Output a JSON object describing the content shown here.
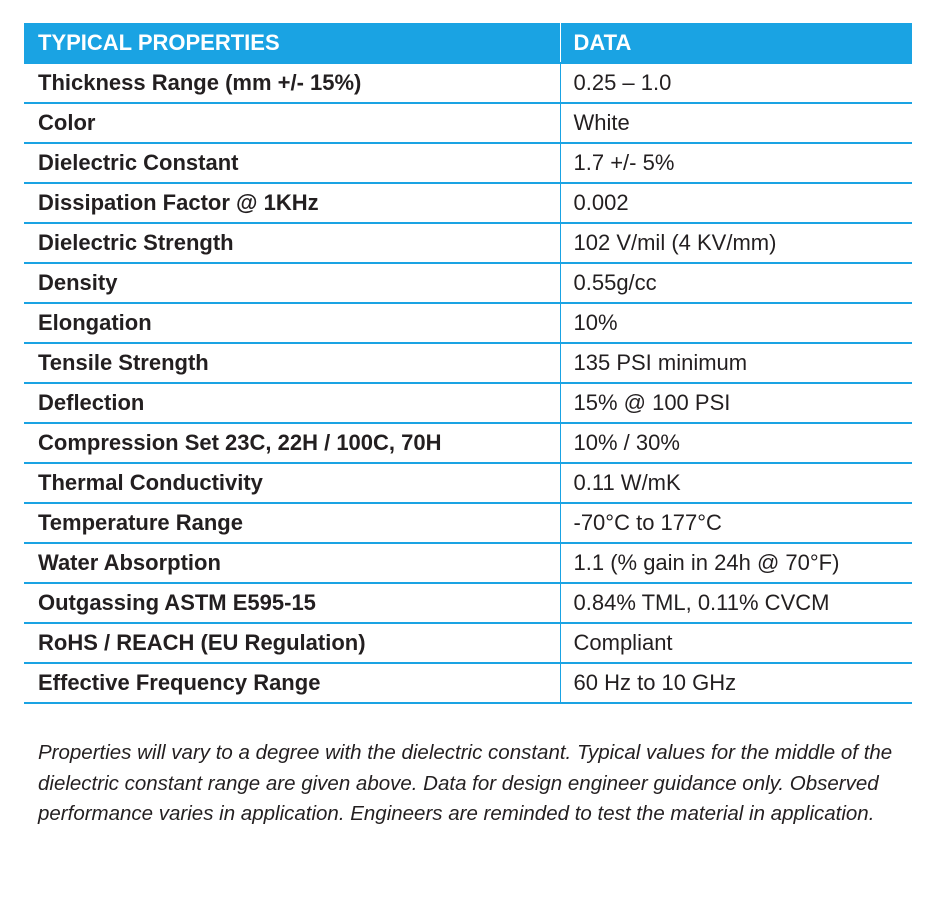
{
  "table": {
    "headers": {
      "property": "TYPICAL PROPERTIES",
      "data": "DATA"
    },
    "rows": [
      {
        "property": "Thickness Range (mm +/- 15%)",
        "value": "0.25 – 1.0"
      },
      {
        "property": "Color",
        "value": "White"
      },
      {
        "property": "Dielectric Constant",
        "value": "1.7 +/- 5%"
      },
      {
        "property": "Dissipation Factor @ 1KHz",
        "value": "0.002"
      },
      {
        "property": "Dielectric Strength",
        "value": "102 V/mil (4 KV/mm)"
      },
      {
        "property": "Density",
        "value": "0.55g/cc"
      },
      {
        "property": "Elongation",
        "value": "10%"
      },
      {
        "property": "Tensile Strength",
        "value": "135 PSI minimum"
      },
      {
        "property": "Deflection",
        "value": "15% @ 100 PSI"
      },
      {
        "property": "Compression Set 23C, 22H / 100C, 70H",
        "value": "10% / 30%"
      },
      {
        "property": "Thermal Conductivity",
        "value": "0.11 W/mK"
      },
      {
        "property": "Temperature Range",
        "value": "-70°C to 177°C"
      },
      {
        "property": "Water Absorption",
        "value": "1.1 (% gain in 24h @ 70°F)"
      },
      {
        "property": "Outgassing ASTM E595-15",
        "value": "0.84% TML, 0.11% CVCM"
      },
      {
        "property": "RoHS / REACH (EU Regulation)",
        "value": "Compliant"
      },
      {
        "property": "Effective Frequency Range",
        "value": "60 Hz to 10 GHz"
      }
    ]
  },
  "note": " Properties will vary to a degree with the dielectric constant. Typical values for the middle of the dielectric constant range are given above. Data for design engineer guidance only. Observed performance varies in application. Engineers are reminded to test the material in application.",
  "colors": {
    "header_background": "#1aa3e3",
    "header_text": "#ffffff",
    "row_divider": "#1aa3e3",
    "body_text": "#231f20"
  }
}
